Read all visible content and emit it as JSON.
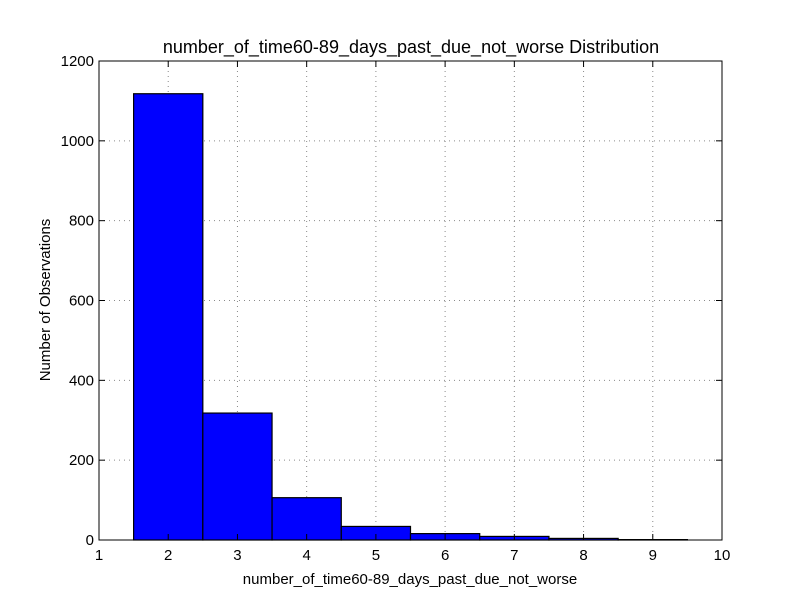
{
  "chart_data": {
    "type": "bar",
    "title": "number_of_time60-89_days_past_due_not_worse Distribution",
    "xlabel": "number_of_time60-89_days_past_due_not_worse",
    "ylabel": "Number of Observations",
    "xlim": [
      1,
      10
    ],
    "ylim": [
      0,
      1200
    ],
    "xticks": [
      1,
      2,
      3,
      4,
      5,
      6,
      7,
      8,
      9,
      10
    ],
    "yticks": [
      0,
      200,
      400,
      600,
      800,
      1000,
      1200
    ],
    "grid": true,
    "bar_width": 1,
    "categories": [
      2,
      3,
      4,
      5,
      6,
      7,
      8,
      9
    ],
    "values": [
      1118,
      318,
      106,
      34,
      16,
      9,
      4,
      1
    ],
    "bar_color": "#0000ff",
    "edge_color": "#000000"
  }
}
